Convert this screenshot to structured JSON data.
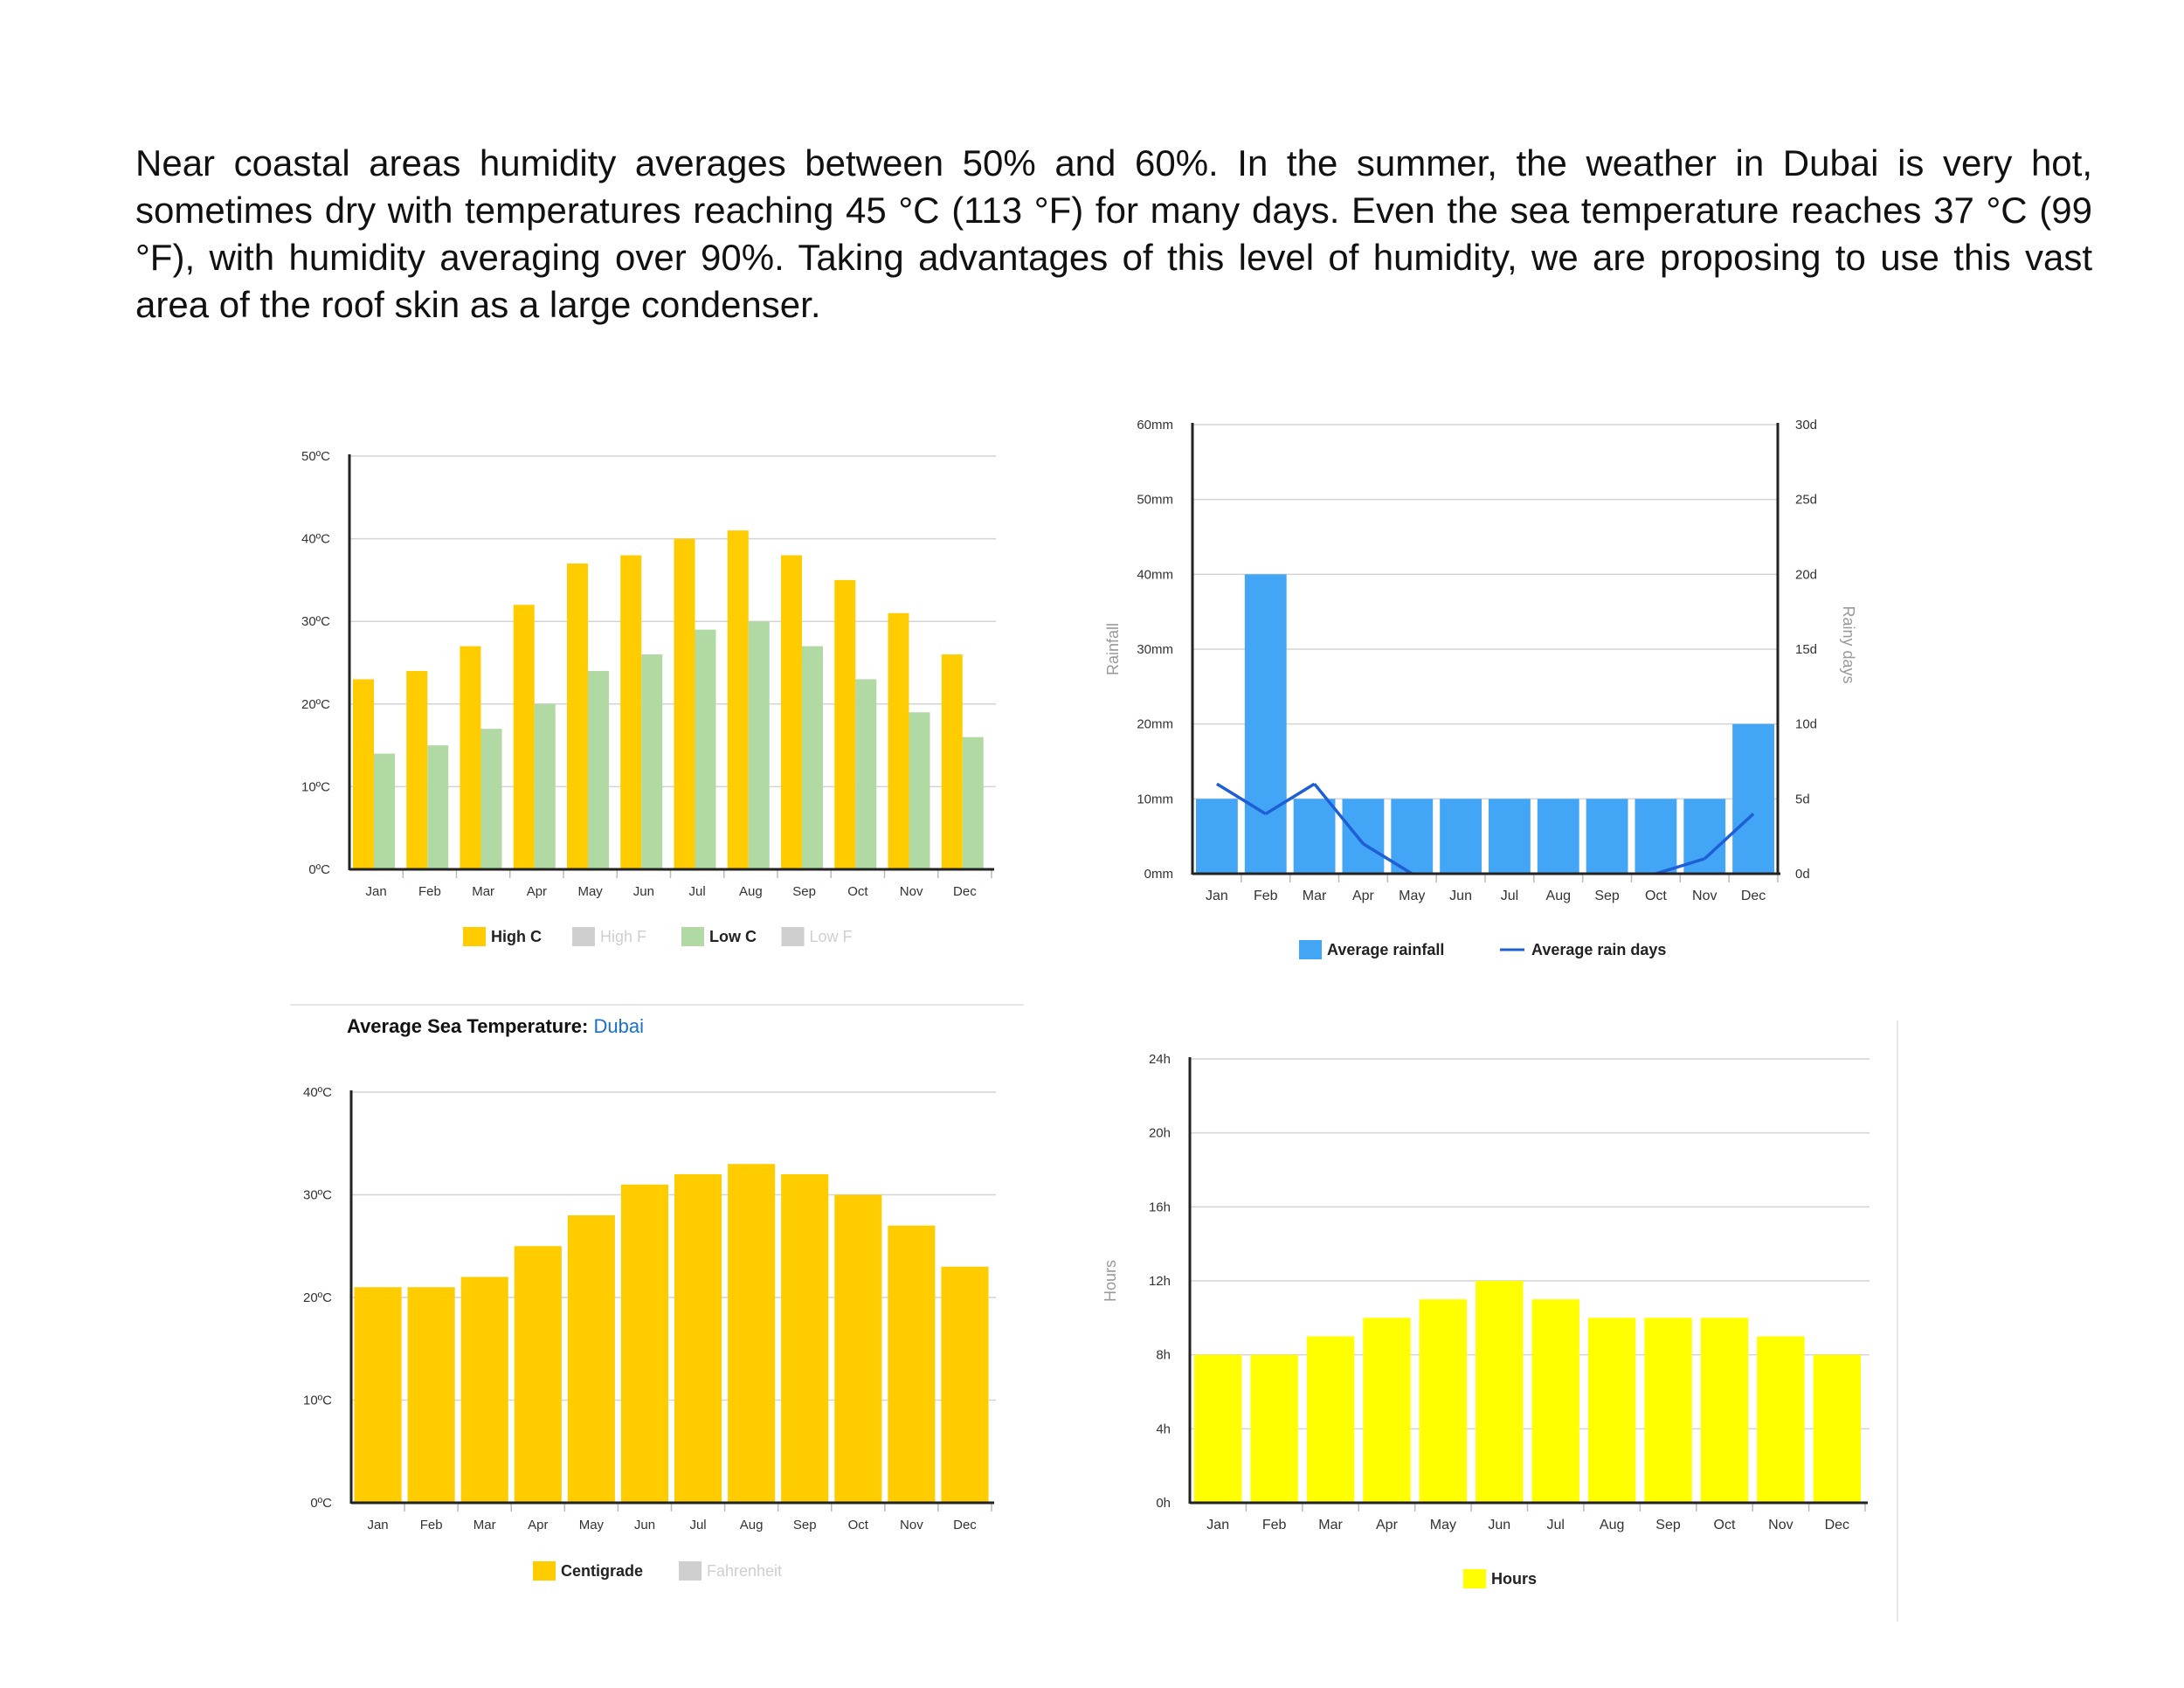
{
  "intro": {
    "text": "Near coastal areas humidity averages between 50% and 60%. In the summer, the weather in Dubai is very hot, sometimes dry with temperatures reaching 45 °C (113 °F) for many days. Even the sea temperature reaches 37 °C (99 °F), with humidity averaging over 90%. Taking advantages of this level of humidity, we are proposing to use this vast area of the roof skin as a large condenser."
  },
  "sea_title": {
    "label": "Average Sea Temperature:",
    "location": "Dubai"
  },
  "chart_data": [
    {
      "id": "air-temperature",
      "type": "bar",
      "categories": [
        "Jan",
        "Feb",
        "Mar",
        "Apr",
        "May",
        "Jun",
        "Jul",
        "Aug",
        "Sep",
        "Oct",
        "Nov",
        "Dec"
      ],
      "series": [
        {
          "name": "High C",
          "values": [
            23,
            24,
            27,
            32,
            37,
            38,
            40,
            41,
            38,
            35,
            31,
            26
          ],
          "color": "#ffcc00"
        },
        {
          "name": "Low C",
          "values": [
            14,
            15,
            17,
            20,
            24,
            26,
            29,
            30,
            27,
            23,
            19,
            16
          ],
          "color": "#b0d9a3"
        }
      ],
      "y_ticks": [
        "0ºC",
        "10ºC",
        "20ºC",
        "30ºC",
        "40ºC",
        "50ºC"
      ],
      "ylim": [
        0,
        50
      ],
      "grid": true,
      "legend": [
        {
          "label": "High C",
          "color": "#ffcc00",
          "active": true
        },
        {
          "label": "High F",
          "color": "#cfcfcf",
          "active": false
        },
        {
          "label": "Low C",
          "color": "#b0d9a3",
          "active": true
        },
        {
          "label": "Low F",
          "color": "#cfcfcf",
          "active": false
        }
      ],
      "legend_position": "bottom"
    },
    {
      "id": "rainfall",
      "type": "bar",
      "categories": [
        "Jan",
        "Feb",
        "Mar",
        "Apr",
        "May",
        "Jun",
        "Jul",
        "Aug",
        "Sep",
        "Oct",
        "Nov",
        "Dec"
      ],
      "series": [
        {
          "name": "Average rainfall",
          "type": "bar",
          "axis": "left",
          "values": [
            10,
            40,
            10,
            10,
            10,
            10,
            10,
            10,
            10,
            10,
            10,
            20
          ],
          "color": "#42a5f5"
        },
        {
          "name": "Average rain days",
          "type": "line",
          "axis": "right",
          "values": [
            6,
            4,
            6,
            2,
            0,
            0,
            0,
            0,
            0,
            0,
            1,
            4
          ],
          "color": "#1f5fd6"
        }
      ],
      "y_ticks": [
        "0mm",
        "10mm",
        "20mm",
        "30mm",
        "40mm",
        "50mm",
        "60mm"
      ],
      "y2_ticks": [
        "0d",
        "5d",
        "10d",
        "15d",
        "20d",
        "25d",
        "30d"
      ],
      "ylabel": "Rainfall",
      "y2label": "Rainy days",
      "ylim": [
        0,
        60
      ],
      "y2lim": [
        0,
        30
      ],
      "grid": true,
      "legend": [
        {
          "label": "Average rainfall",
          "color": "#42a5f5",
          "kind": "box"
        },
        {
          "label": "Average rain days",
          "color": "#1f5fd6",
          "kind": "line"
        }
      ],
      "legend_position": "bottom"
    },
    {
      "id": "sea-temperature",
      "type": "bar",
      "categories": [
        "Jan",
        "Feb",
        "Mar",
        "Apr",
        "May",
        "Jun",
        "Jul",
        "Aug",
        "Sep",
        "Oct",
        "Nov",
        "Dec"
      ],
      "series": [
        {
          "name": "Centigrade",
          "values": [
            21,
            21,
            22,
            25,
            28,
            31,
            32,
            33,
            32,
            30,
            27,
            23
          ],
          "color": "#ffcc00"
        }
      ],
      "y_ticks": [
        "0ºC",
        "10ºC",
        "20ºC",
        "30ºC",
        "40ºC"
      ],
      "ylim": [
        0,
        40
      ],
      "grid": true,
      "legend": [
        {
          "label": "Centigrade",
          "color": "#ffcc00",
          "active": true
        },
        {
          "label": "Fahrenheit",
          "color": "#cfcfcf",
          "active": false
        }
      ],
      "legend_position": "bottom"
    },
    {
      "id": "sunshine",
      "type": "bar",
      "categories": [
        "Jan",
        "Feb",
        "Mar",
        "Apr",
        "May",
        "Jun",
        "Jul",
        "Aug",
        "Sep",
        "Oct",
        "Nov",
        "Dec"
      ],
      "series": [
        {
          "name": "Hours",
          "values": [
            8,
            8,
            9,
            10,
            11,
            12,
            11,
            10,
            10,
            10,
            9,
            8
          ],
          "color": "#ffff00"
        }
      ],
      "y_ticks": [
        "0h",
        "4h",
        "8h",
        "12h",
        "16h",
        "20h",
        "24h"
      ],
      "ylabel": "Hours",
      "ylim": [
        0,
        24
      ],
      "grid": true,
      "legend": [
        {
          "label": "Hours",
          "color": "#ffff00",
          "active": true
        }
      ],
      "legend_position": "bottom"
    }
  ]
}
